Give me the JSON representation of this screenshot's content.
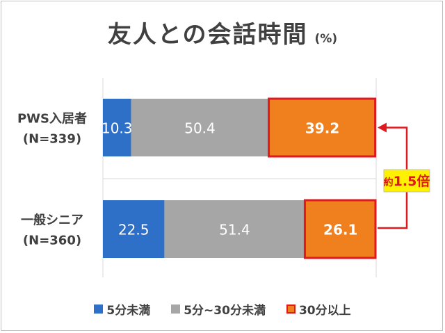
{
  "title": "友人との会話時間",
  "title_unit": "(%)",
  "colors": {
    "blue": "#2E6FC8",
    "gray": "#A6A6A6",
    "orange": "#F07F1E",
    "highlight_border": "#E0191E",
    "callout_fill": "#FFF200"
  },
  "chart_data": {
    "type": "bar",
    "orientation": "horizontal",
    "stacked": true,
    "categories": [
      {
        "line1": "PWS入居者",
        "line2": "(N=339)"
      },
      {
        "line1": "一般シニア",
        "line2": "(N=360)"
      }
    ],
    "series": [
      {
        "name": "5分未満",
        "values": [
          10.3,
          22.5
        ]
      },
      {
        "name": "5分~30分未満",
        "values": [
          50.4,
          51.4
        ]
      },
      {
        "name": "30分以上",
        "values": [
          39.2,
          26.1
        ]
      }
    ],
    "xlim": [
      0,
      100
    ],
    "legend_position": "bottom",
    "annotation": {
      "prefix": "約",
      "value": "1.5倍"
    }
  }
}
